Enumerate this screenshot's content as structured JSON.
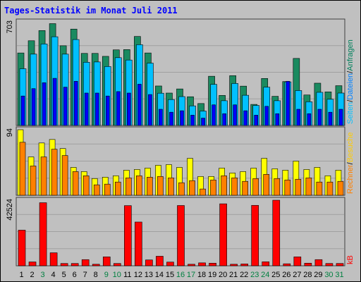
{
  "chart_data": [
    {
      "type": "bar",
      "title": "Tages-Statistik im Monat Juli 2011",
      "panel": "Anfragen / Dateien / Seiten",
      "ymax_label": "703",
      "legend": [
        {
          "text": "Anfragen",
          "color": "#00805c"
        },
        {
          "text": "Dateien",
          "color": "#0080ff"
        },
        {
          "text": "Seiten",
          "color": "#00c0ff"
        }
      ],
      "categories": [
        "1",
        "2",
        "3",
        "4",
        "5",
        "6",
        "7",
        "8",
        "9",
        "10",
        "11",
        "12",
        "13",
        "14",
        "15",
        "16",
        "17",
        "18",
        "19",
        "20",
        "21",
        "22",
        "23",
        "24",
        "25",
        "26",
        "27",
        "28",
        "29",
        "30",
        "31"
      ],
      "series": [
        {
          "name": "Anfragen",
          "color": "#1a8a60",
          "values": [
            492,
            575,
            644,
            691,
            541,
            654,
            489,
            489,
            469,
            513,
            515,
            604,
            492,
            268,
            220,
            248,
            195,
            149,
            334,
            204,
            338,
            267,
            143,
            319,
            198,
            298,
            455,
            207,
            287,
            228,
            270
          ]
        },
        {
          "name": "Dateien",
          "color": "#00c0ff",
          "values": [
            385,
            484,
            553,
            602,
            484,
            583,
            429,
            431,
            400,
            460,
            444,
            548,
            423,
            219,
            176,
            196,
            133,
            98,
            279,
            168,
            285,
            205,
            136,
            260,
            168,
            296,
            237,
            161,
            225,
            178,
            220
          ]
        },
        {
          "name": "Seiten",
          "color": "#0000ff",
          "values": [
            200,
            250,
            290,
            320,
            260,
            300,
            220,
            220,
            200,
            230,
            220,
            280,
            210,
            110,
            90,
            100,
            70,
            50,
            140,
            80,
            140,
            100,
            70,
            130,
            80,
            300,
            110,
            80,
            110,
            90,
            110
          ]
        }
      ]
    },
    {
      "type": "bar",
      "panel": "Besuche / Rechner",
      "ymax_label": "94",
      "legend": [
        {
          "text": "Besuche",
          "color": "#ffcc00"
        },
        {
          "text": "Rechner",
          "color": "#ff8000"
        }
      ],
      "categories": [
        "1",
        "2",
        "3",
        "4",
        "5",
        "6",
        "7",
        "8",
        "9",
        "10",
        "11",
        "12",
        "13",
        "14",
        "15",
        "16",
        "17",
        "18",
        "19",
        "20",
        "21",
        "22",
        "23",
        "24",
        "25",
        "26",
        "27",
        "28",
        "29",
        "30",
        "31"
      ],
      "series": [
        {
          "name": "Besuche",
          "color": "#ffff00",
          "values": [
            94,
            55,
            75,
            80,
            67,
            40,
            34,
            24,
            26,
            28,
            36,
            37,
            39,
            43,
            44,
            40,
            53,
            27,
            27,
            39,
            32,
            34,
            39,
            53,
            38,
            36,
            49,
            37,
            40,
            28,
            36
          ]
        },
        {
          "name": "Rechner",
          "color": "#ff8000",
          "values": [
            76,
            42,
            55,
            66,
            57,
            34,
            28,
            15,
            16,
            19,
            25,
            28,
            26,
            27,
            25,
            18,
            21,
            9,
            22,
            28,
            25,
            20,
            24,
            30,
            24,
            22,
            23,
            25,
            19,
            19,
            20
          ]
        }
      ]
    },
    {
      "type": "bar",
      "panel": "kB",
      "ymax_label": "42524",
      "legend": [
        {
          "text": "kB",
          "color": "#ff0000"
        }
      ],
      "categories": [
        "1",
        "2",
        "3",
        "4",
        "5",
        "6",
        "7",
        "8",
        "9",
        "10",
        "11",
        "12",
        "13",
        "14",
        "15",
        "16",
        "17",
        "18",
        "19",
        "20",
        "21",
        "22",
        "23",
        "24",
        "25",
        "26",
        "27",
        "28",
        "29",
        "30",
        "31"
      ],
      "series": [
        {
          "name": "kB",
          "color": "#ff0000",
          "values": [
            23114,
            2500,
            40910,
            8438,
            1500,
            1500,
            4000,
            1000,
            5800,
            1500,
            39029,
            28373,
            3800,
            6200,
            2400,
            39100,
            1000,
            1900,
            1700,
            40200,
            1000,
            1200,
            39200,
            2600,
            42524,
            1300,
            5800,
            1700,
            4000,
            1500,
            1500
          ]
        }
      ]
    }
  ],
  "x_labels": [
    {
      "text": "1",
      "color": "#000000"
    },
    {
      "text": "2",
      "color": "#000000"
    },
    {
      "text": "3",
      "color": "#008040"
    },
    {
      "text": "4",
      "color": "#000000"
    },
    {
      "text": "5",
      "color": "#000000"
    },
    {
      "text": "6",
      "color": "#000000"
    },
    {
      "text": "7",
      "color": "#000000"
    },
    {
      "text": "8",
      "color": "#000000"
    },
    {
      "text": "9",
      "color": "#008040"
    },
    {
      "text": "10",
      "color": "#008040"
    },
    {
      "text": "11",
      "color": "#000000"
    },
    {
      "text": "12",
      "color": "#000000"
    },
    {
      "text": "13",
      "color": "#000000"
    },
    {
      "text": "14",
      "color": "#000000"
    },
    {
      "text": "15",
      "color": "#000000"
    },
    {
      "text": "16",
      "color": "#008040"
    },
    {
      "text": "17",
      "color": "#008040"
    },
    {
      "text": "18",
      "color": "#000000"
    },
    {
      "text": "19",
      "color": "#000000"
    },
    {
      "text": "20",
      "color": "#000000"
    },
    {
      "text": "21",
      "color": "#000000"
    },
    {
      "text": "22",
      "color": "#000000"
    },
    {
      "text": "23",
      "color": "#008040"
    },
    {
      "text": "24",
      "color": "#008040"
    },
    {
      "text": "25",
      "color": "#000000"
    },
    {
      "text": "26",
      "color": "#000000"
    },
    {
      "text": "27",
      "color": "#000000"
    },
    {
      "text": "28",
      "color": "#000000"
    },
    {
      "text": "29",
      "color": "#000000"
    },
    {
      "text": "30",
      "color": "#008040"
    },
    {
      "text": "31",
      "color": "#008040"
    }
  ],
  "colors": {
    "background": "#c0c0c0",
    "plot_bg": "#c0c0c0",
    "title": "#0000ff",
    "grid": "#a0a0a0"
  }
}
